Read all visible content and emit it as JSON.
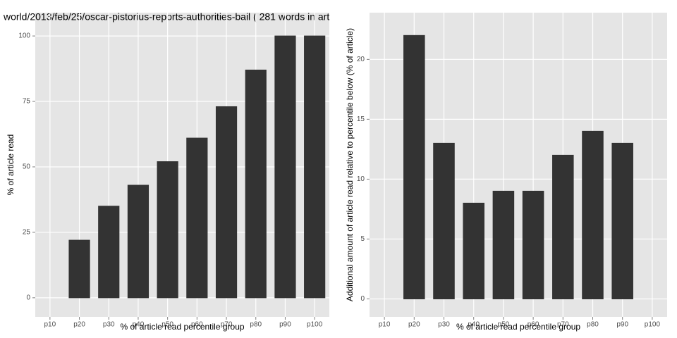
{
  "chart_data": [
    {
      "type": "bar",
      "title": "world/2013/feb/25/oscar-pistorius-reports-authorities-bail ( 281 words in art",
      "x_label": "% of article read percentile group",
      "y_label": "% of article read",
      "categories": [
        "p10",
        "p20",
        "p30",
        "p40",
        "p50",
        "p60",
        "p70",
        "p80",
        "p90",
        "p100"
      ],
      "values": [
        0,
        22,
        35,
        43,
        52,
        61,
        73,
        87,
        100,
        100
      ],
      "color": "#333333",
      "ylim": [
        -7.3,
        108.9
      ],
      "yticks": [
        0,
        25,
        50,
        75,
        100
      ],
      "grid": true
    },
    {
      "type": "bar",
      "x_label": "% of article read percentile group",
      "y_label": "Additional amount of article read relative to percentile below (% of article)",
      "categories": [
        "p10",
        "p20",
        "p30",
        "p40",
        "p50",
        "p60",
        "p70",
        "p80",
        "p90",
        "p100"
      ],
      "values": [
        0,
        22,
        13,
        8,
        9,
        9,
        12,
        14,
        13,
        0
      ],
      "color": "#333333",
      "ylim": [
        -1.5,
        23.9
      ],
      "yticks": [
        0,
        5,
        10,
        15,
        20
      ],
      "grid": true
    }
  ]
}
